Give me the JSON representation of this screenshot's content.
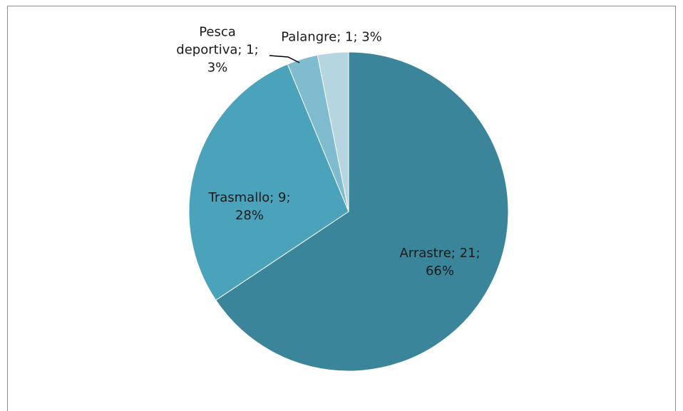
{
  "chart_data": {
    "type": "pie",
    "categories": [
      "Arrastre",
      "Trasmallo",
      "Pesca deportiva",
      "Palangre"
    ],
    "values": [
      21,
      9,
      1,
      1
    ],
    "value_labels": [
      "Arrastre; 21; 66%",
      "Trasmallo; 9; 28%",
      "Pesca deportiva; 1; 3%",
      "Palangre; 1; 3%"
    ],
    "colors": [
      "#3a8599",
      "#4aa3ba",
      "#7fbccf",
      "#b5d6e0"
    ]
  }
}
